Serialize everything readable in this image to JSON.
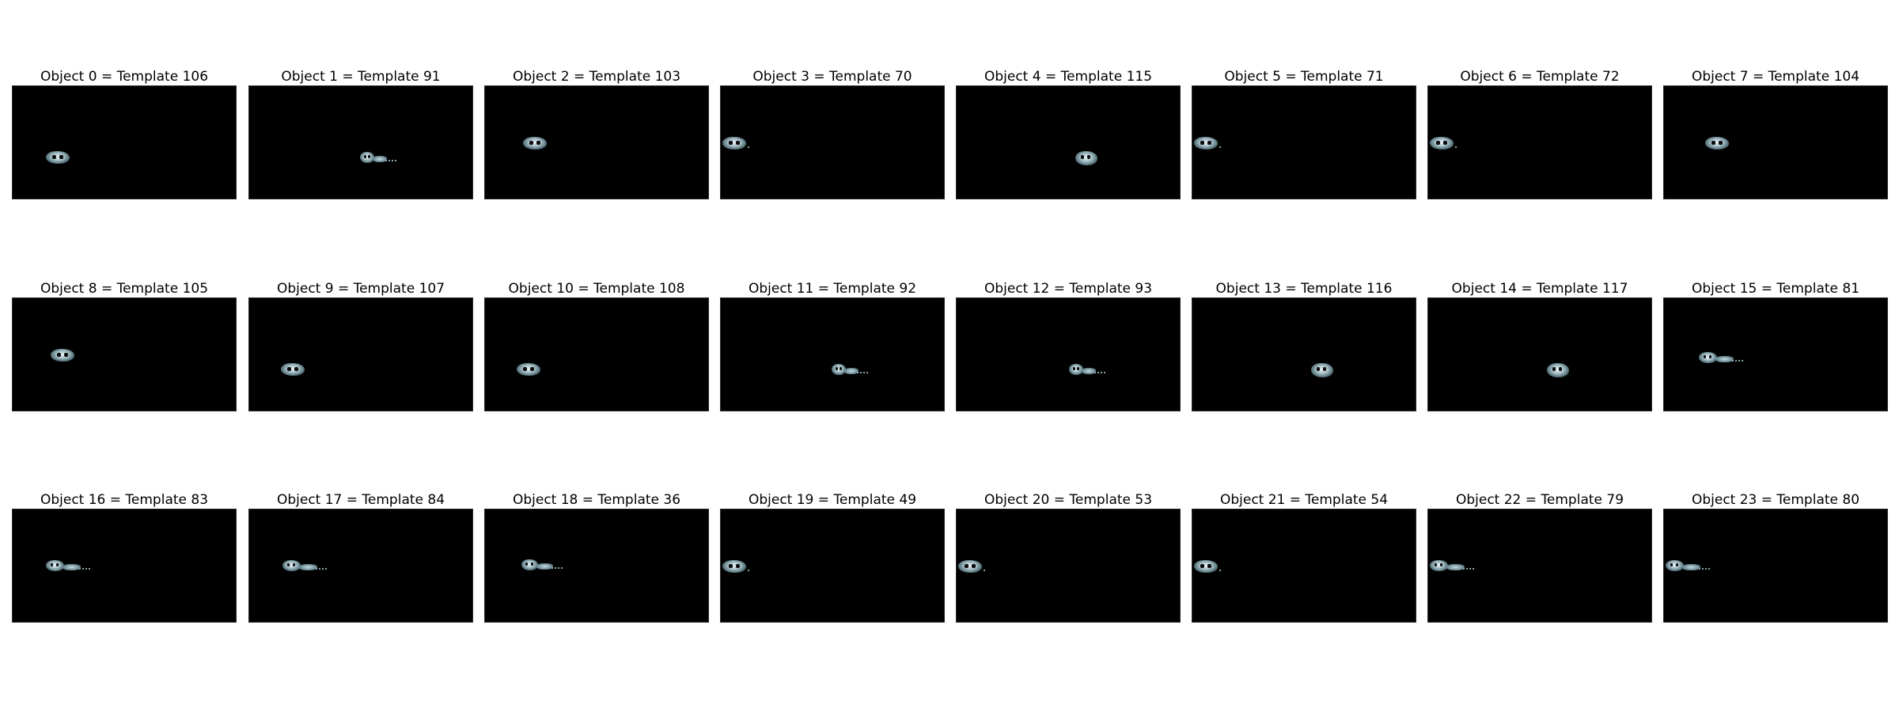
{
  "figure": {
    "panels": [
      {
        "title": "Object 0 = Template 106",
        "object_icon": "object-silhouette-icon"
      },
      {
        "title": "Object 1 = Template 91",
        "object_icon": "object-silhouette-icon"
      },
      {
        "title": "Object 2 = Template 103",
        "object_icon": "object-silhouette-icon"
      },
      {
        "title": "Object 3 = Template 70",
        "object_icon": "object-silhouette-icon"
      },
      {
        "title": "Object 4 = Template 115",
        "object_icon": "object-silhouette-icon"
      },
      {
        "title": "Object 5 = Template 71",
        "object_icon": "object-silhouette-icon"
      },
      {
        "title": "Object 6 = Template 72",
        "object_icon": "object-silhouette-icon"
      },
      {
        "title": "Object 7 = Template 104",
        "object_icon": "object-silhouette-icon"
      },
      {
        "title": "Object 8 = Template 105",
        "object_icon": "object-silhouette-icon"
      },
      {
        "title": "Object 9 = Template 107",
        "object_icon": "object-silhouette-icon"
      },
      {
        "title": "Object 10 = Template 108",
        "object_icon": "object-silhouette-icon"
      },
      {
        "title": "Object 11 = Template 92",
        "object_icon": "object-silhouette-icon"
      },
      {
        "title": "Object 12 = Template 93",
        "object_icon": "object-silhouette-icon"
      },
      {
        "title": "Object 13 = Template 116",
        "object_icon": "object-silhouette-icon"
      },
      {
        "title": "Object 14 = Template 117",
        "object_icon": "object-silhouette-icon"
      },
      {
        "title": "Object 15 = Template 81",
        "object_icon": "object-silhouette-icon"
      },
      {
        "title": "Object 16 = Template 83",
        "object_icon": "object-silhouette-icon"
      },
      {
        "title": "Object 17 = Template 84",
        "object_icon": "object-silhouette-icon"
      },
      {
        "title": "Object 18 = Template 36",
        "object_icon": "object-silhouette-icon"
      },
      {
        "title": "Object 19 = Template 49",
        "object_icon": "object-silhouette-icon"
      },
      {
        "title": "Object 20 = Template 53",
        "object_icon": "object-silhouette-icon"
      },
      {
        "title": "Object 21 = Template 54",
        "object_icon": "object-silhouette-icon"
      },
      {
        "title": "Object 22 = Template 79",
        "object_icon": "object-silhouette-icon"
      },
      {
        "title": "Object 23 = Template 80",
        "object_icon": "object-silhouette-icon"
      }
    ],
    "colors": {
      "background": "#ffffff",
      "panel": "#000000",
      "object_highlight": "#e8f2f6",
      "object_shade": "#4e6a72"
    }
  }
}
